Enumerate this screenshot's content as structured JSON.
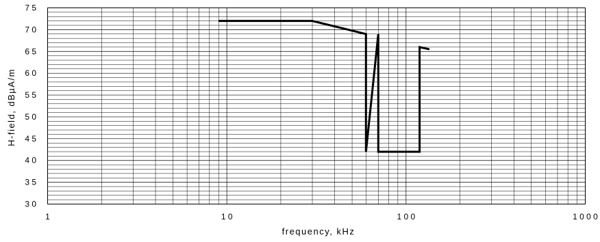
{
  "chart_data": {
    "type": "line",
    "title": "",
    "xlabel": "frequency, kHz",
    "ylabel": "H-field, dBµA/m",
    "x_scale": "log",
    "xlim": [
      1,
      1000
    ],
    "ylim": [
      30,
      75
    ],
    "x_ticks": [
      1,
      10,
      100,
      1000
    ],
    "x_tick_labels": [
      "1",
      "10",
      "100",
      "1000"
    ],
    "y_ticks": [
      30,
      35,
      40,
      45,
      50,
      55,
      60,
      65,
      70,
      75
    ],
    "y_tick_labels": [
      "30",
      "35",
      "40",
      "45",
      "50",
      "55",
      "60",
      "65",
      "70",
      "75"
    ],
    "grid": true,
    "series": [
      {
        "color": "#000000",
        "x": [
          9,
          30,
          59.75,
          59.75,
          59.75,
          70,
          70,
          70,
          119,
          119,
          119,
          135
        ],
        "y": [
          72,
          72,
          69,
          69,
          42,
          69,
          68.5,
          42,
          42,
          42,
          66,
          65.5
        ]
      }
    ]
  }
}
